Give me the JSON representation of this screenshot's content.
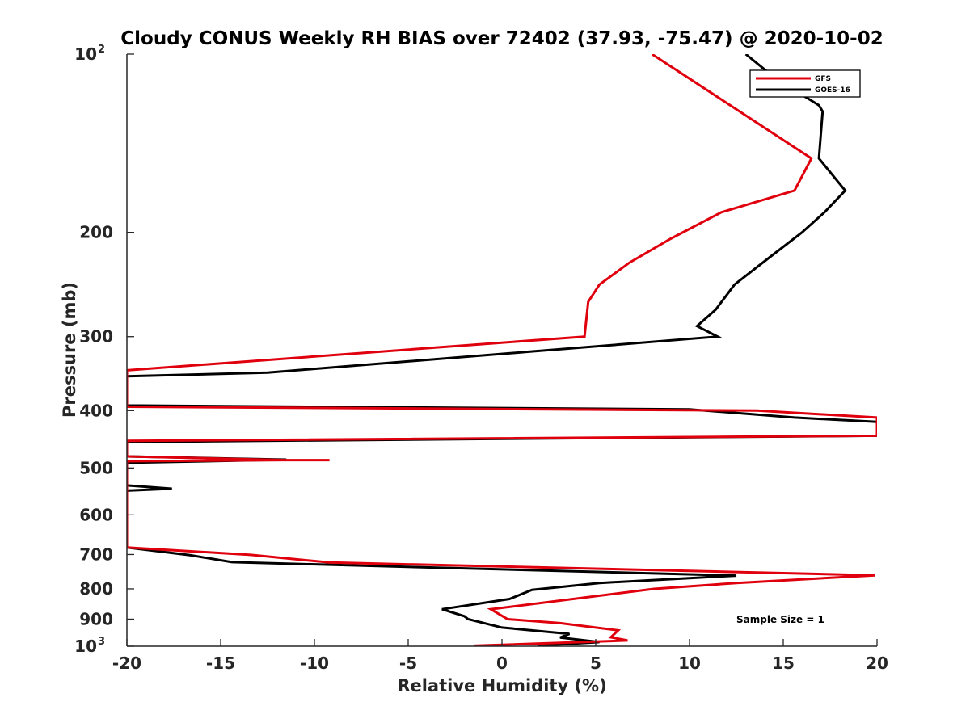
{
  "chart_data": {
    "type": "line",
    "title": "Cloudy CONUS Weekly RH BIAS over 72402 (37.93, -75.47) @ 2020-10-02",
    "xlabel": "Relative Humidity (%)",
    "ylabel": "Pressure (mb)",
    "xlim": [
      -20,
      20
    ],
    "ylim": [
      100,
      1000
    ],
    "y_scale": "log",
    "y_reversed": true,
    "grid": false,
    "legend_position": "top-right",
    "x_ticks": [
      "-20",
      "-15",
      "-10",
      "-5",
      "0",
      "5",
      "10",
      "15",
      "20"
    ],
    "y_ticks": [
      {
        "value": 100,
        "base": "10",
        "exp": "2"
      },
      {
        "value": 200,
        "label": "200"
      },
      {
        "value": 300,
        "label": "300"
      },
      {
        "value": 400,
        "label": "400"
      },
      {
        "value": 500,
        "label": "500"
      },
      {
        "value": 600,
        "label": "600"
      },
      {
        "value": 700,
        "label": "700"
      },
      {
        "value": 800,
        "label": "800"
      },
      {
        "value": 900,
        "label": "900"
      },
      {
        "value": 1000,
        "base": "10",
        "exp": "3"
      }
    ],
    "annotation": "Sample Size = 1",
    "series": [
      {
        "name": "GFS",
        "color": "#e0000d",
        "points": [
          [
            8.0,
            100
          ],
          [
            16.5,
            150
          ],
          [
            15.6,
            170
          ],
          [
            11.7,
            185
          ],
          [
            9.0,
            205
          ],
          [
            6.8,
            225
          ],
          [
            5.2,
            245
          ],
          [
            4.6,
            262
          ],
          [
            4.4,
            300
          ],
          [
            -20.0,
            342
          ],
          [
            -20.0,
            394
          ],
          [
            13.6,
            400
          ],
          [
            20.0,
            411
          ],
          [
            20.0,
            441
          ],
          [
            -20.0,
            450
          ],
          [
            -20.0,
            478
          ],
          [
            -11.5,
            485
          ],
          [
            -9.2,
            485
          ],
          [
            -11.5,
            485
          ],
          [
            -20.0,
            487
          ],
          [
            -20.0,
            681
          ],
          [
            -13.4,
            701
          ],
          [
            -9.2,
            722
          ],
          [
            19.9,
            759
          ],
          [
            12.5,
            782
          ],
          [
            8.1,
            800
          ],
          [
            -0.6,
            866
          ],
          [
            0.3,
            900
          ],
          [
            3.1,
            914
          ],
          [
            6.2,
            940
          ],
          [
            5.8,
            966
          ],
          [
            6.7,
            978
          ],
          [
            -1.5,
            998
          ]
        ]
      },
      {
        "name": "GOES-16",
        "color": "#000000",
        "points": [
          [
            13.0,
            100
          ],
          [
            14.6,
            110
          ],
          [
            16.9,
            122
          ],
          [
            17.1,
            125
          ],
          [
            16.9,
            150
          ],
          [
            18.3,
            170
          ],
          [
            17.2,
            185
          ],
          [
            16.0,
            200
          ],
          [
            14.3,
            220
          ],
          [
            12.4,
            245
          ],
          [
            11.4,
            270
          ],
          [
            10.4,
            288
          ],
          [
            11.5,
            300
          ],
          [
            1.5,
            318
          ],
          [
            -12.5,
            345
          ],
          [
            -20.0,
            350
          ],
          [
            -20.0,
            392
          ],
          [
            10.0,
            398
          ],
          [
            15.6,
            411
          ],
          [
            20.0,
            418
          ],
          [
            20.0,
            441
          ],
          [
            -20.0,
            452
          ],
          [
            -20.0,
            478
          ],
          [
            -11.5,
            484
          ],
          [
            -20.0,
            490
          ],
          [
            -20.0,
            535
          ],
          [
            -17.6,
            542
          ],
          [
            -20.0,
            546
          ],
          [
            -20.0,
            681
          ],
          [
            -16.6,
            702
          ],
          [
            -14.4,
            721
          ],
          [
            12.5,
            760
          ],
          [
            5.2,
            782
          ],
          [
            1.6,
            803
          ],
          [
            0.4,
            832
          ],
          [
            -3.2,
            866
          ],
          [
            -2.0,
            890
          ],
          [
            -1.8,
            900
          ],
          [
            0.0,
            930
          ],
          [
            3.6,
            953
          ],
          [
            3.1,
            967
          ],
          [
            5.2,
            984
          ],
          [
            1.9,
            998
          ]
        ]
      }
    ]
  }
}
